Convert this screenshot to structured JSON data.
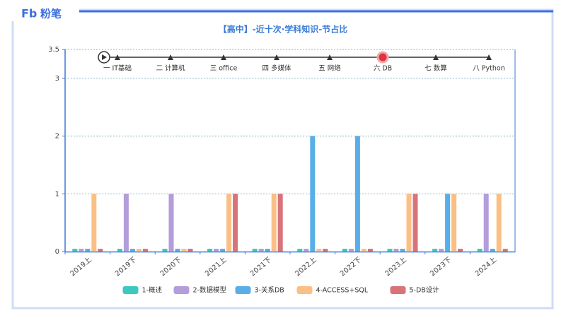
{
  "brand": {
    "mark": "Fb",
    "name": "粉笔"
  },
  "timeline": {
    "items": [
      "一 IT基础",
      "二 计算机",
      "三 office",
      "四 多媒体",
      "五 网络",
      "六 DB",
      "七 数算",
      "八 Python"
    ],
    "active": 5
  },
  "chart_data": {
    "type": "bar",
    "title": "【高中】-近十次·学科知识-节占比",
    "categories": [
      "2019上",
      "2019下",
      "2020下",
      "2021上",
      "2021下",
      "2022上",
      "2022下",
      "2023上",
      "2023下",
      "2024上"
    ],
    "series": [
      {
        "name": "1-概述",
        "color": "#3cc9c0",
        "values": [
          0,
          0,
          0,
          0,
          0,
          0,
          0,
          0,
          0,
          0
        ]
      },
      {
        "name": "2-数据模型",
        "color": "#b39ddb",
        "values": [
          0,
          1,
          1,
          0,
          0,
          0,
          0,
          0,
          0,
          1
        ]
      },
      {
        "name": "3-关系DB",
        "color": "#5aaee8",
        "values": [
          0,
          0,
          0,
          0,
          0,
          2,
          2,
          0,
          1,
          0
        ]
      },
      {
        "name": "4-ACCESS+SQL",
        "color": "#fbbf86",
        "values": [
          1,
          0,
          0,
          1,
          1,
          0,
          0,
          1,
          1,
          1
        ]
      },
      {
        "name": "5-DB设计",
        "color": "#d9737a",
        "values": [
          0,
          0,
          0,
          1,
          1,
          0,
          0,
          1,
          0,
          0
        ]
      }
    ],
    "ylim": [
      0,
      3.5
    ],
    "yticks": [
      0,
      1,
      2,
      3,
      3.5
    ],
    "grid": true
  }
}
